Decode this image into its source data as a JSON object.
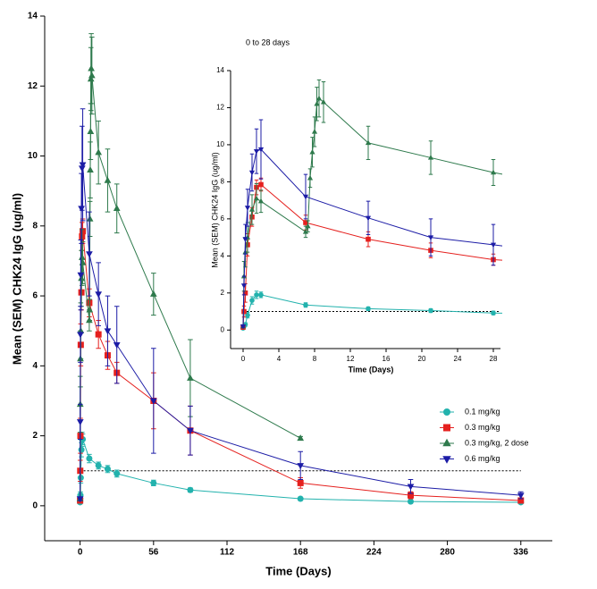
{
  "chart_data": [
    {
      "type": "line",
      "x_label": "Time (Days)",
      "y_label": "Mean (SEM) CHK24 IgG (ug/ml)",
      "xlim": [
        -27,
        360
      ],
      "ylim": [
        -1,
        14
      ],
      "xticks": [
        0,
        56,
        112,
        168,
        224,
        280,
        336
      ],
      "yticks": [
        0,
        2,
        4,
        6,
        8,
        10,
        12,
        14
      ],
      "reference_line": 1,
      "legend": "right",
      "series": [
        {
          "name": "0.1 mg/kg",
          "color": "#22b2ad",
          "marker": "circle",
          "x": [
            0,
            0.1,
            0.25,
            0.5,
            1,
            1.5,
            2,
            7,
            14,
            21,
            28,
            56,
            84,
            168,
            252,
            336
          ],
          "values": [
            0.1,
            0.2,
            0.3,
            0.8,
            1.6,
            1.9,
            1.9,
            1.35,
            1.15,
            1.05,
            0.92,
            0.65,
            0.45,
            0.2,
            0.12,
            0.1
          ],
          "errors": [
            0.02,
            0.05,
            0.1,
            0.15,
            0.2,
            0.2,
            0.15,
            0.12,
            0.1,
            0.1,
            0.1,
            0.08,
            0.06,
            0.05,
            0.04,
            0.03
          ]
        },
        {
          "name": "0.3 mg/kg",
          "color": "#e5201e",
          "marker": "square",
          "x": [
            0,
            0.1,
            0.25,
            0.5,
            1,
            1.5,
            2,
            7,
            14,
            21,
            28,
            56,
            84,
            168,
            252,
            336
          ],
          "values": [
            0.15,
            1.0,
            2.0,
            4.6,
            6.1,
            7.7,
            7.85,
            5.8,
            4.9,
            4.3,
            3.8,
            3.0,
            2.15,
            0.65,
            0.3,
            0.15
          ],
          "errors": [
            0.05,
            0.3,
            0.5,
            0.6,
            0.5,
            0.4,
            0.35,
            0.4,
            0.4,
            0.4,
            0.3,
            0.8,
            0.7,
            0.15,
            0.1,
            0.05
          ]
        },
        {
          "name": "0.3 mg/kg, 2 dose",
          "color": "#2e7a4c",
          "marker": "triangle-up",
          "x": [
            0,
            0.1,
            0.25,
            0.5,
            1,
            1.5,
            2,
            7,
            7.25,
            7.5,
            7.75,
            8,
            8.25,
            8.5,
            9,
            14,
            21,
            28,
            56,
            84,
            168
          ],
          "values": [
            0.2,
            2.9,
            4.2,
            5.0,
            6.5,
            7.1,
            6.95,
            5.3,
            5.6,
            8.2,
            9.6,
            10.7,
            12.2,
            12.5,
            12.3,
            10.1,
            9.3,
            8.5,
            6.05,
            3.65,
            1.93
          ],
          "errors": [
            0.05,
            0.8,
            0.8,
            0.8,
            0.8,
            0.8,
            0.6,
            0.3,
            0.3,
            0.5,
            0.8,
            0.8,
            0.9,
            1.0,
            1.1,
            0.9,
            0.9,
            0.7,
            0.6,
            1.1,
            0.05
          ]
        },
        {
          "name": "0.6 mg/kg",
          "color": "#1c1ca6",
          "marker": "triangle-down",
          "x": [
            0,
            0.1,
            0.25,
            0.5,
            1,
            1.5,
            2,
            7,
            14,
            21,
            28,
            56,
            84,
            168,
            252,
            336
          ],
          "values": [
            0.2,
            2.4,
            4.9,
            6.6,
            8.5,
            9.65,
            9.75,
            7.2,
            6.05,
            5.0,
            4.6,
            3.0,
            2.15,
            1.15,
            0.55,
            0.3
          ],
          "errors": [
            0.05,
            0.5,
            0.8,
            1.0,
            1.0,
            1.2,
            1.6,
            1.2,
            0.9,
            1.0,
            1.1,
            1.5,
            0.7,
            0.4,
            0.2,
            0.1
          ]
        }
      ]
    },
    {
      "type": "line",
      "title": "0 to 28 days",
      "x_label": "Time (Days)",
      "y_label": "Mean (SEM) CHK24 IgG (ug/ml)",
      "xlim": [
        -1.4,
        28.8
      ],
      "ylim": [
        -1,
        14
      ],
      "xticks": [
        0,
        4,
        8,
        12,
        16,
        20,
        24,
        28
      ],
      "yticks": [
        0,
        2,
        4,
        6,
        8,
        10,
        12,
        14
      ],
      "reference_line": 1
    }
  ]
}
